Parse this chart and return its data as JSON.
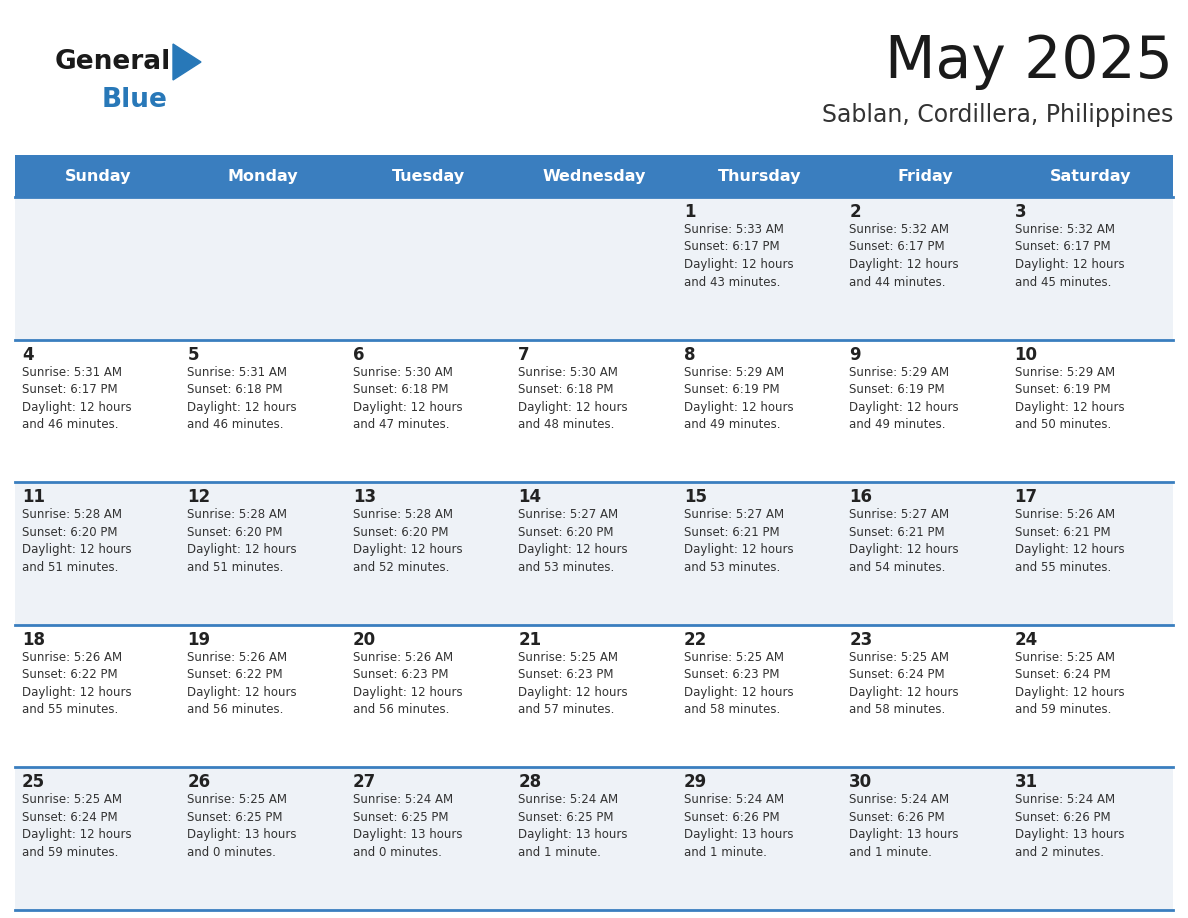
{
  "title": "May 2025",
  "subtitle": "Sablan, Cordillera, Philippines",
  "days_of_week": [
    "Sunday",
    "Monday",
    "Tuesday",
    "Wednesday",
    "Thursday",
    "Friday",
    "Saturday"
  ],
  "header_bg": "#3a7ebf",
  "header_text": "#ffffff",
  "cell_bg_even": "#eef2f7",
  "cell_bg_odd": "#ffffff",
  "row_line_color": "#3a7ebf",
  "title_color": "#1a1a1a",
  "subtitle_color": "#333333",
  "day_number_color": "#222222",
  "cell_text_color": "#333333",
  "fig_width": 11.88,
  "fig_height": 9.18,
  "calendar_data": [
    [
      {
        "day": null,
        "text": ""
      },
      {
        "day": null,
        "text": ""
      },
      {
        "day": null,
        "text": ""
      },
      {
        "day": null,
        "text": ""
      },
      {
        "day": 1,
        "text": "Sunrise: 5:33 AM\nSunset: 6:17 PM\nDaylight: 12 hours\nand 43 minutes."
      },
      {
        "day": 2,
        "text": "Sunrise: 5:32 AM\nSunset: 6:17 PM\nDaylight: 12 hours\nand 44 minutes."
      },
      {
        "day": 3,
        "text": "Sunrise: 5:32 AM\nSunset: 6:17 PM\nDaylight: 12 hours\nand 45 minutes."
      }
    ],
    [
      {
        "day": 4,
        "text": "Sunrise: 5:31 AM\nSunset: 6:17 PM\nDaylight: 12 hours\nand 46 minutes."
      },
      {
        "day": 5,
        "text": "Sunrise: 5:31 AM\nSunset: 6:18 PM\nDaylight: 12 hours\nand 46 minutes."
      },
      {
        "day": 6,
        "text": "Sunrise: 5:30 AM\nSunset: 6:18 PM\nDaylight: 12 hours\nand 47 minutes."
      },
      {
        "day": 7,
        "text": "Sunrise: 5:30 AM\nSunset: 6:18 PM\nDaylight: 12 hours\nand 48 minutes."
      },
      {
        "day": 8,
        "text": "Sunrise: 5:29 AM\nSunset: 6:19 PM\nDaylight: 12 hours\nand 49 minutes."
      },
      {
        "day": 9,
        "text": "Sunrise: 5:29 AM\nSunset: 6:19 PM\nDaylight: 12 hours\nand 49 minutes."
      },
      {
        "day": 10,
        "text": "Sunrise: 5:29 AM\nSunset: 6:19 PM\nDaylight: 12 hours\nand 50 minutes."
      }
    ],
    [
      {
        "day": 11,
        "text": "Sunrise: 5:28 AM\nSunset: 6:20 PM\nDaylight: 12 hours\nand 51 minutes."
      },
      {
        "day": 12,
        "text": "Sunrise: 5:28 AM\nSunset: 6:20 PM\nDaylight: 12 hours\nand 51 minutes."
      },
      {
        "day": 13,
        "text": "Sunrise: 5:28 AM\nSunset: 6:20 PM\nDaylight: 12 hours\nand 52 minutes."
      },
      {
        "day": 14,
        "text": "Sunrise: 5:27 AM\nSunset: 6:20 PM\nDaylight: 12 hours\nand 53 minutes."
      },
      {
        "day": 15,
        "text": "Sunrise: 5:27 AM\nSunset: 6:21 PM\nDaylight: 12 hours\nand 53 minutes."
      },
      {
        "day": 16,
        "text": "Sunrise: 5:27 AM\nSunset: 6:21 PM\nDaylight: 12 hours\nand 54 minutes."
      },
      {
        "day": 17,
        "text": "Sunrise: 5:26 AM\nSunset: 6:21 PM\nDaylight: 12 hours\nand 55 minutes."
      }
    ],
    [
      {
        "day": 18,
        "text": "Sunrise: 5:26 AM\nSunset: 6:22 PM\nDaylight: 12 hours\nand 55 minutes."
      },
      {
        "day": 19,
        "text": "Sunrise: 5:26 AM\nSunset: 6:22 PM\nDaylight: 12 hours\nand 56 minutes."
      },
      {
        "day": 20,
        "text": "Sunrise: 5:26 AM\nSunset: 6:23 PM\nDaylight: 12 hours\nand 56 minutes."
      },
      {
        "day": 21,
        "text": "Sunrise: 5:25 AM\nSunset: 6:23 PM\nDaylight: 12 hours\nand 57 minutes."
      },
      {
        "day": 22,
        "text": "Sunrise: 5:25 AM\nSunset: 6:23 PM\nDaylight: 12 hours\nand 58 minutes."
      },
      {
        "day": 23,
        "text": "Sunrise: 5:25 AM\nSunset: 6:24 PM\nDaylight: 12 hours\nand 58 minutes."
      },
      {
        "day": 24,
        "text": "Sunrise: 5:25 AM\nSunset: 6:24 PM\nDaylight: 12 hours\nand 59 minutes."
      }
    ],
    [
      {
        "day": 25,
        "text": "Sunrise: 5:25 AM\nSunset: 6:24 PM\nDaylight: 12 hours\nand 59 minutes."
      },
      {
        "day": 26,
        "text": "Sunrise: 5:25 AM\nSunset: 6:25 PM\nDaylight: 13 hours\nand 0 minutes."
      },
      {
        "day": 27,
        "text": "Sunrise: 5:24 AM\nSunset: 6:25 PM\nDaylight: 13 hours\nand 0 minutes."
      },
      {
        "day": 28,
        "text": "Sunrise: 5:24 AM\nSunset: 6:25 PM\nDaylight: 13 hours\nand 1 minute."
      },
      {
        "day": 29,
        "text": "Sunrise: 5:24 AM\nSunset: 6:26 PM\nDaylight: 13 hours\nand 1 minute."
      },
      {
        "day": 30,
        "text": "Sunrise: 5:24 AM\nSunset: 6:26 PM\nDaylight: 13 hours\nand 1 minute."
      },
      {
        "day": 31,
        "text": "Sunrise: 5:24 AM\nSunset: 6:26 PM\nDaylight: 13 hours\nand 2 minutes."
      }
    ]
  ]
}
